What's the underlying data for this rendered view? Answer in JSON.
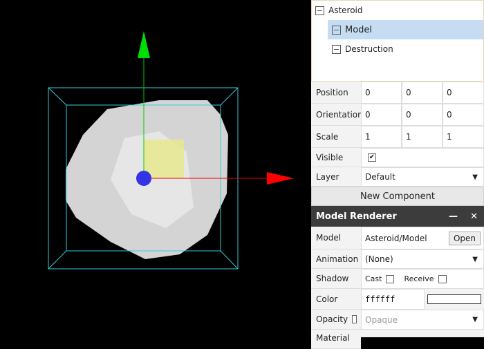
{
  "tree": {
    "root": "Asteroid",
    "children": [
      "Model",
      "Destruction"
    ]
  },
  "properties": {
    "position": {
      "label": "Position",
      "values": [
        0,
        0,
        0
      ]
    },
    "orientation": {
      "label": "Orientation",
      "values": [
        0,
        0,
        0
      ]
    },
    "scale": {
      "label": "Scale",
      "values": [
        1,
        1,
        1
      ]
    },
    "visible": {
      "label": "Visible",
      "checked": true
    },
    "layer": {
      "label": "Layer",
      "value": "Default"
    }
  },
  "new_component": "New Component",
  "model_renderer": {
    "title": "Model Renderer",
    "model": {
      "label": "Model",
      "value": "Asteroid/Model",
      "button": "Open"
    },
    "animation": {
      "label": "Animation",
      "value": "(None)"
    },
    "shadow": {
      "label": "Shadow",
      "cast": "Cast",
      "receive": "Receive"
    },
    "color": {
      "label": "Color",
      "value": "ffffff"
    },
    "opacity": {
      "label": "Opacity",
      "value": "Opaque"
    },
    "material": {
      "label": "Material"
    }
  }
}
